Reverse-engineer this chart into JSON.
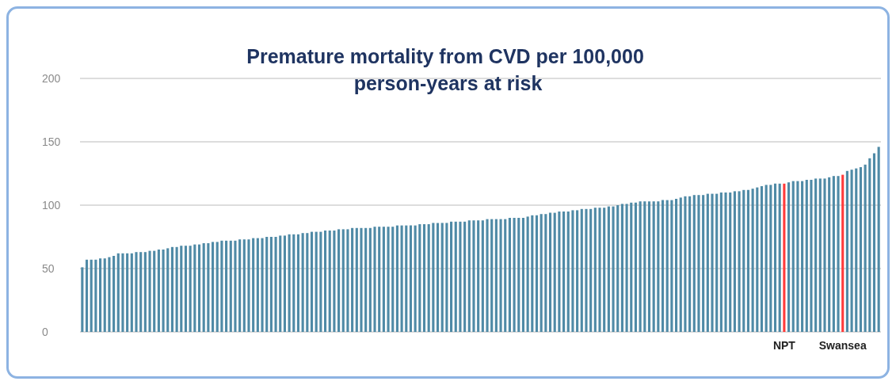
{
  "chart_data": {
    "type": "bar",
    "title": "Premature mortality from CVD per 100,000 person-years at risk",
    "categories": [
      null,
      null,
      null,
      null,
      null,
      null,
      null,
      null,
      null,
      null,
      null,
      null,
      null,
      null,
      null,
      null,
      null,
      null,
      null,
      null,
      null,
      null,
      null,
      null,
      null,
      null,
      null,
      null,
      null,
      null,
      null,
      null,
      null,
      null,
      null,
      null,
      null,
      null,
      null,
      null,
      null,
      null,
      null,
      null,
      null,
      null,
      null,
      null,
      null,
      null,
      null,
      null,
      null,
      null,
      null,
      null,
      null,
      null,
      null,
      null,
      null,
      null,
      null,
      null,
      null,
      null,
      null,
      null,
      null,
      null,
      null,
      null,
      null,
      null,
      null,
      null,
      null,
      null,
      null,
      null,
      null,
      null,
      null,
      null,
      null,
      null,
      null,
      null,
      null,
      null,
      null,
      null,
      null,
      null,
      null,
      null,
      null,
      null,
      null,
      null,
      null,
      null,
      null,
      null,
      null,
      null,
      null,
      null,
      null,
      null,
      null,
      null,
      null,
      null,
      null,
      null,
      null,
      null,
      null,
      null,
      null,
      null,
      null,
      null,
      null,
      null,
      null,
      null,
      null,
      null,
      null,
      null,
      null,
      null,
      null,
      null,
      null,
      null,
      null,
      null,
      null,
      null,
      null,
      null,
      null,
      null,
      null,
      null,
      null,
      null,
      null,
      null,
      null,
      null,
      null,
      null,
      "NPT",
      null,
      null,
      null,
      null,
      null,
      null,
      null,
      null,
      null,
      null,
      null,
      null,
      "Swansea",
      null,
      null,
      null,
      null,
      null,
      null,
      null,
      null
    ],
    "values": [
      51,
      57,
      57,
      57,
      58,
      58,
      59,
      60,
      62,
      62,
      62,
      62,
      63,
      63,
      63,
      64,
      64,
      65,
      65,
      66,
      67,
      67,
      68,
      68,
      68,
      69,
      69,
      70,
      70,
      71,
      71,
      72,
      72,
      72,
      72,
      73,
      73,
      73,
      74,
      74,
      74,
      75,
      75,
      75,
      76,
      76,
      77,
      77,
      77,
      78,
      78,
      79,
      79,
      79,
      80,
      80,
      80,
      81,
      81,
      81,
      82,
      82,
      82,
      82,
      82,
      83,
      83,
      83,
      83,
      83,
      84,
      84,
      84,
      84,
      84,
      85,
      85,
      85,
      86,
      86,
      86,
      86,
      87,
      87,
      87,
      87,
      88,
      88,
      88,
      88,
      89,
      89,
      89,
      89,
      89,
      90,
      90,
      90,
      90,
      91,
      92,
      92,
      93,
      93,
      94,
      94,
      95,
      95,
      95,
      96,
      96,
      97,
      97,
      97,
      98,
      98,
      98,
      99,
      99,
      100,
      101,
      101,
      102,
      102,
      103,
      103,
      103,
      103,
      103,
      104,
      104,
      104,
      105,
      106,
      107,
      107,
      108,
      108,
      108,
      109,
      109,
      109,
      110,
      110,
      110,
      111,
      111,
      112,
      112,
      113,
      114,
      115,
      116,
      116,
      117,
      117,
      117,
      118,
      119,
      119,
      119,
      120,
      120,
      121,
      121,
      121,
      122,
      123,
      123,
      124,
      127,
      128,
      129,
      130,
      132,
      137,
      141,
      146
    ],
    "colors": [
      "#4f8aa6",
      "#4f8aa6",
      "#4f8aa6",
      "#4f8aa6",
      "#4f8aa6",
      "#4f8aa6",
      "#4f8aa6",
      "#4f8aa6",
      "#4f8aa6",
      "#4f8aa6",
      "#4f8aa6",
      "#4f8aa6",
      "#4f8aa6",
      "#4f8aa6",
      "#4f8aa6",
      "#4f8aa6",
      "#4f8aa6",
      "#4f8aa6",
      "#4f8aa6",
      "#4f8aa6",
      "#4f8aa6",
      "#4f8aa6",
      "#4f8aa6",
      "#4f8aa6",
      "#4f8aa6",
      "#4f8aa6",
      "#4f8aa6",
      "#4f8aa6",
      "#4f8aa6",
      "#4f8aa6",
      "#4f8aa6",
      "#4f8aa6",
      "#4f8aa6",
      "#4f8aa6",
      "#4f8aa6",
      "#4f8aa6",
      "#4f8aa6",
      "#4f8aa6",
      "#4f8aa6",
      "#4f8aa6",
      "#4f8aa6",
      "#4f8aa6",
      "#4f8aa6",
      "#4f8aa6",
      "#4f8aa6",
      "#4f8aa6",
      "#4f8aa6",
      "#4f8aa6",
      "#4f8aa6",
      "#4f8aa6",
      "#4f8aa6",
      "#4f8aa6",
      "#4f8aa6",
      "#4f8aa6",
      "#4f8aa6",
      "#4f8aa6",
      "#4f8aa6",
      "#4f8aa6",
      "#4f8aa6",
      "#4f8aa6",
      "#4f8aa6",
      "#4f8aa6",
      "#4f8aa6",
      "#4f8aa6",
      "#4f8aa6",
      "#4f8aa6",
      "#4f8aa6",
      "#4f8aa6",
      "#4f8aa6",
      "#4f8aa6",
      "#4f8aa6",
      "#4f8aa6",
      "#4f8aa6",
      "#4f8aa6",
      "#4f8aa6",
      "#4f8aa6",
      "#4f8aa6",
      "#4f8aa6",
      "#4f8aa6",
      "#4f8aa6",
      "#4f8aa6",
      "#4f8aa6",
      "#4f8aa6",
      "#4f8aa6",
      "#4f8aa6",
      "#4f8aa6",
      "#4f8aa6",
      "#4f8aa6",
      "#4f8aa6",
      "#4f8aa6",
      "#4f8aa6",
      "#4f8aa6",
      "#4f8aa6",
      "#4f8aa6",
      "#4f8aa6",
      "#4f8aa6",
      "#4f8aa6",
      "#4f8aa6",
      "#4f8aa6",
      "#4f8aa6",
      "#4f8aa6",
      "#4f8aa6",
      "#4f8aa6",
      "#4f8aa6",
      "#4f8aa6",
      "#4f8aa6",
      "#4f8aa6",
      "#4f8aa6",
      "#4f8aa6",
      "#4f8aa6",
      "#4f8aa6",
      "#4f8aa6",
      "#4f8aa6",
      "#4f8aa6",
      "#4f8aa6",
      "#4f8aa6",
      "#4f8aa6",
      "#4f8aa6",
      "#4f8aa6",
      "#4f8aa6",
      "#4f8aa6",
      "#4f8aa6",
      "#4f8aa6",
      "#4f8aa6",
      "#4f8aa6",
      "#4f8aa6",
      "#4f8aa6",
      "#4f8aa6",
      "#4f8aa6",
      "#4f8aa6",
      "#4f8aa6",
      "#4f8aa6",
      "#4f8aa6",
      "#4f8aa6",
      "#4f8aa6",
      "#4f8aa6",
      "#4f8aa6",
      "#4f8aa6",
      "#4f8aa6",
      "#4f8aa6",
      "#4f8aa6",
      "#4f8aa6",
      "#4f8aa6",
      "#4f8aa6",
      "#4f8aa6",
      "#4f8aa6",
      "#4f8aa6",
      "#4f8aa6",
      "#4f8aa6",
      "#4f8aa6",
      "#4f8aa6",
      "#4f8aa6",
      "#4f8aa6",
      "#4f8aa6",
      "#4f8aa6",
      "#4f8aa6",
      "#ff3b3b",
      "#4f8aa6",
      "#4f8aa6",
      "#4f8aa6",
      "#4f8aa6",
      "#4f8aa6",
      "#4f8aa6",
      "#4f8aa6",
      "#4f8aa6",
      "#4f8aa6",
      "#4f8aa6",
      "#4f8aa6",
      "#4f8aa6",
      "#ff3b3b",
      "#4f8aa6",
      "#4f8aa6",
      "#4f8aa6",
      "#4f8aa6",
      "#4f8aa6",
      "#4f8aa6",
      "#4f8aa6",
      "#4f8aa6"
    ],
    "ylim": [
      0,
      200
    ],
    "yticks": [
      0,
      50,
      100,
      150,
      200
    ],
    "grid": "y"
  }
}
